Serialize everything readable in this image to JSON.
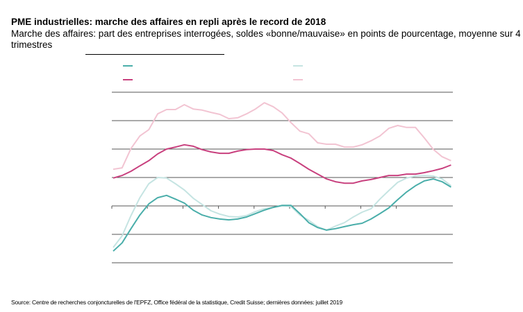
{
  "title": "PME industrielles: marche des affaires en repli après le record de 2018",
  "subtitle": "Marche des affaires: part des entreprises interrogées, soldes «bonne/mauvaise» en points de pourcentage, moyenne sur 4 trimestres",
  "source": "Source: Centre de recherches conjoncturelles de l'EPFZ, Office fédéral de la statistique, Credit Suisse; dernières données: juillet 2019",
  "colors": {
    "series_1": "#4aaeaa",
    "series_2": "#c8407e",
    "series_3": "#c5e4e2",
    "series_4": "#f2c4d2",
    "grid": "#555555"
  },
  "chart_data": {
    "type": "line",
    "title": "PME industrielles: marche des affaires en repli après le record de 2018",
    "xlabel": "",
    "ylabel": "",
    "x_start": "2010 Q1",
    "x_step": "quarter",
    "x_count": 39,
    "ylim": [
      -20,
      40
    ],
    "y_gridlines": [
      -20,
      -10,
      0,
      10,
      20,
      30,
      40
    ],
    "x_ticks_years": [
      2010,
      2011,
      2012,
      2013,
      2014,
      2015,
      2016,
      2017,
      2018
    ],
    "tick_labels_visible": false,
    "legend": {
      "placement": "top",
      "labels_visible": false
    },
    "series": [
      {
        "name": "series-teal",
        "color_key": "series_1",
        "values": [
          -15.9,
          -13.0,
          -8.0,
          -3.2,
          0.7,
          2.9,
          3.7,
          2.4,
          1.0,
          -1.5,
          -3.2,
          -4.1,
          -4.6,
          -4.9,
          -4.6,
          -3.9,
          -2.7,
          -1.5,
          -0.5,
          0.2,
          0.2,
          -2.7,
          -5.9,
          -7.6,
          -8.5,
          -8.0,
          -7.3,
          -6.6,
          -6.1,
          -4.6,
          -2.7,
          -0.7,
          2.2,
          4.9,
          7.1,
          8.8,
          9.5,
          8.5,
          6.6
        ]
      },
      {
        "name": "series-magenta",
        "color_key": "series_2",
        "values": [
          9.8,
          10.7,
          12.2,
          14.1,
          15.9,
          18.3,
          20.0,
          20.7,
          21.5,
          21.0,
          19.8,
          19.0,
          18.5,
          18.5,
          19.3,
          19.8,
          20.0,
          20.0,
          19.5,
          18.0,
          16.8,
          14.9,
          12.9,
          11.2,
          9.5,
          8.5,
          8.0,
          8.0,
          8.8,
          9.3,
          10.0,
          10.7,
          10.7,
          11.2,
          11.2,
          11.7,
          12.4,
          13.2,
          14.4
        ]
      },
      {
        "name": "series-light-teal",
        "color_key": "series_3",
        "values": [
          -14.6,
          -10.5,
          -3.4,
          2.9,
          7.8,
          10.0,
          9.8,
          7.8,
          5.6,
          2.7,
          0.5,
          -1.7,
          -2.9,
          -3.7,
          -3.9,
          -3.4,
          -2.0,
          -1.0,
          -0.5,
          0.0,
          -0.2,
          -3.2,
          -5.1,
          -7.3,
          -8.5,
          -7.1,
          -5.9,
          -3.9,
          -2.2,
          -1.0,
          2.4,
          5.4,
          8.3,
          9.8,
          10.5,
          10.7,
          10.5,
          9.5,
          7.1
        ]
      },
      {
        "name": "series-light-pink",
        "color_key": "series_4",
        "values": [
          12.9,
          13.4,
          20.2,
          24.6,
          26.8,
          32.4,
          33.9,
          33.9,
          35.6,
          34.1,
          33.7,
          32.9,
          32.2,
          30.7,
          31.0,
          32.4,
          34.1,
          36.3,
          34.9,
          32.7,
          29.3,
          26.3,
          25.4,
          22.2,
          21.7,
          21.7,
          20.7,
          20.7,
          21.5,
          22.9,
          24.6,
          27.3,
          28.3,
          27.6,
          27.6,
          23.9,
          19.9,
          17.3,
          15.9
        ]
      }
    ]
  }
}
